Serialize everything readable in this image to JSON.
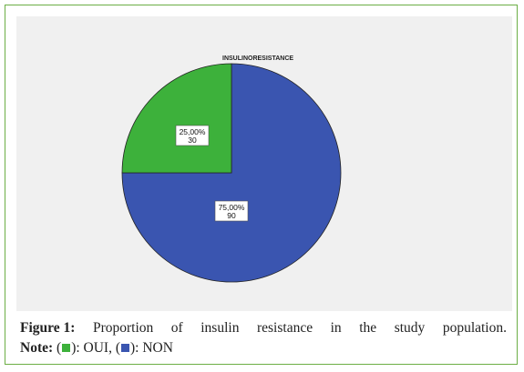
{
  "chart_data": {
    "type": "pie",
    "title": "INSULINORESISTANCE",
    "slices": [
      {
        "name": "OUI",
        "value": 30,
        "percent_label": "25,00%",
        "count_label": "30",
        "color": "#3db13b"
      },
      {
        "name": "NON",
        "value": 90,
        "percent_label": "75,00%",
        "count_label": "90",
        "color": "#3a55b0"
      }
    ]
  },
  "caption": {
    "figure_label": "Figure 1:",
    "words": [
      "Proportion",
      "of",
      "insulin",
      "resistance",
      "in",
      "the",
      "study",
      "population."
    ],
    "note_label": "Note:",
    "note_oui": "): OUI, (",
    "note_non": "): NON",
    "open_paren": "("
  }
}
